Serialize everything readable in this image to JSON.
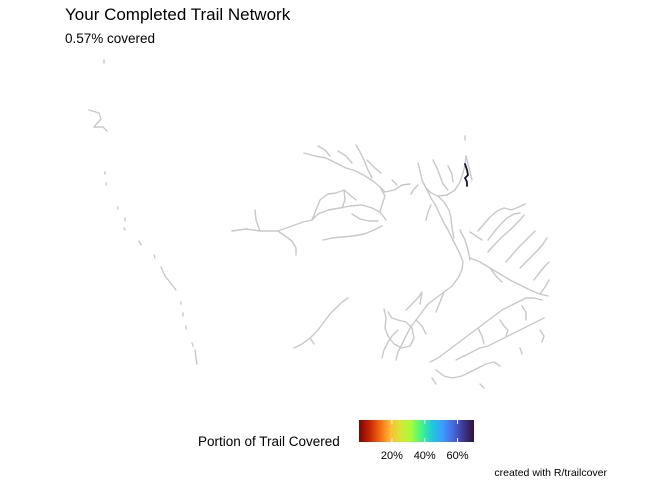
{
  "header": {
    "title": "Your Completed Trail Network",
    "subtitle": "0.57% covered"
  },
  "legend": {
    "title": "Portion of Trail Covered",
    "scale_min": 0,
    "scale_max": 70,
    "ticks": [
      {
        "value": 20,
        "label": "20%"
      },
      {
        "value": 40,
        "label": "40%"
      },
      {
        "value": 60,
        "label": "60%"
      }
    ],
    "palette": [
      "#7a0403",
      "#c42503",
      "#f26a11",
      "#fdbb35",
      "#d2e935",
      "#a4fc3c",
      "#3ff58a",
      "#1fc8de",
      "#3e9bfe",
      "#4669e0",
      "#3e378f",
      "#30123b"
    ]
  },
  "map": {
    "trail_color": "#c8c8c8",
    "covered_color": "#1a0f2e",
    "covered_fraction_percent": 0.57
  },
  "caption": "created with R/trailcover"
}
